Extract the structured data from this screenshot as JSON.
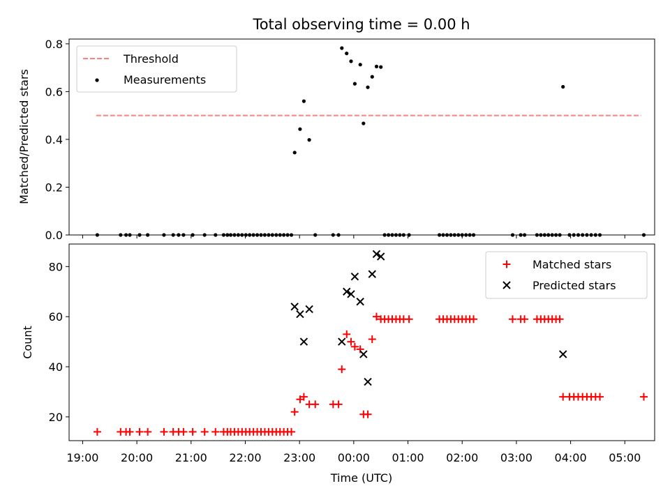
{
  "figure": {
    "title": "Total observing time = 0.00 h"
  },
  "chart_data": [
    {
      "type": "scatter",
      "panel": "top",
      "ylabel": "Matched/Predicted stars",
      "ylim": [
        0,
        0.82
      ],
      "yticks": [
        0.0,
        0.2,
        0.4,
        0.6,
        0.8
      ],
      "ytick_labels": [
        "0.0",
        "0.2",
        "0.4",
        "0.6",
        "0.8"
      ],
      "xlim": [
        -0.25,
        10.55
      ],
      "legend_position": "top-left",
      "threshold": {
        "name": "Threshold",
        "color": "#ff7f7f",
        "value": 0.5,
        "x_start": 0.25,
        "x_end": 10.3
      },
      "series": [
        {
          "name": "Measurements",
          "color": "#000000",
          "points": [
            [
              0.27,
              0
            ],
            [
              0.7,
              0
            ],
            [
              0.8,
              0
            ],
            [
              0.87,
              0
            ],
            [
              1.05,
              0
            ],
            [
              1.2,
              0
            ],
            [
              1.5,
              0
            ],
            [
              1.67,
              0
            ],
            [
              1.77,
              0
            ],
            [
              1.86,
              0
            ],
            [
              2.03,
              0
            ],
            [
              2.25,
              0
            ],
            [
              2.45,
              0
            ],
            [
              2.6,
              0
            ],
            [
              2.67,
              0
            ],
            [
              2.73,
              0
            ],
            [
              2.8,
              0
            ],
            [
              2.87,
              0
            ],
            [
              2.94,
              0
            ],
            [
              3.01,
              0
            ],
            [
              3.08,
              0
            ],
            [
              3.15,
              0
            ],
            [
              3.22,
              0
            ],
            [
              3.29,
              0
            ],
            [
              3.36,
              0
            ],
            [
              3.43,
              0
            ],
            [
              3.5,
              0
            ],
            [
              3.57,
              0
            ],
            [
              3.64,
              0
            ],
            [
              3.71,
              0
            ],
            [
              3.78,
              0
            ],
            [
              3.85,
              0
            ],
            [
              3.91,
              0.345
            ],
            [
              4.01,
              0.443
            ],
            [
              4.08,
              0.56
            ],
            [
              4.18,
              0.398
            ],
            [
              4.29,
              0
            ],
            [
              4.62,
              0
            ],
            [
              4.72,
              0
            ],
            [
              4.78,
              0.782
            ],
            [
              4.87,
              0.76
            ],
            [
              4.95,
              0.727
            ],
            [
              5.02,
              0.633
            ],
            [
              5.12,
              0.713
            ],
            [
              5.18,
              0.467
            ],
            [
              5.26,
              0.618
            ],
            [
              5.34,
              0.662
            ],
            [
              5.42,
              0.705
            ],
            [
              5.5,
              0.703
            ],
            [
              5.57,
              0
            ],
            [
              5.64,
              0
            ],
            [
              5.71,
              0
            ],
            [
              5.78,
              0
            ],
            [
              5.85,
              0
            ],
            [
              5.92,
              0
            ],
            [
              6.02,
              0
            ],
            [
              6.58,
              0
            ],
            [
              6.65,
              0
            ],
            [
              6.72,
              0
            ],
            [
              6.79,
              0
            ],
            [
              6.86,
              0
            ],
            [
              6.93,
              0
            ],
            [
              7.0,
              0
            ],
            [
              7.07,
              0
            ],
            [
              7.14,
              0
            ],
            [
              7.21,
              0
            ],
            [
              7.93,
              0
            ],
            [
              8.08,
              0
            ],
            [
              8.15,
              0
            ],
            [
              8.38,
              0
            ],
            [
              8.45,
              0
            ],
            [
              8.52,
              0
            ],
            [
              8.59,
              0
            ],
            [
              8.66,
              0
            ],
            [
              8.73,
              0
            ],
            [
              8.8,
              0
            ],
            [
              8.86,
              0.62
            ],
            [
              8.98,
              0
            ],
            [
              9.06,
              0
            ],
            [
              9.14,
              0
            ],
            [
              9.22,
              0
            ],
            [
              9.3,
              0
            ],
            [
              9.38,
              0
            ],
            [
              9.46,
              0
            ],
            [
              9.54,
              0
            ],
            [
              10.35,
              0
            ]
          ]
        }
      ]
    },
    {
      "type": "scatter",
      "panel": "bottom",
      "xlabel": "Time (UTC)",
      "ylabel": "Count",
      "ylim": [
        10.5,
        89
      ],
      "yticks": [
        20,
        40,
        60,
        80
      ],
      "ytick_labels": [
        "20",
        "40",
        "60",
        "80"
      ],
      "xlim": [
        -0.25,
        10.55
      ],
      "xticks": [
        0,
        1,
        2,
        3,
        4,
        5,
        6,
        7,
        8,
        9,
        10
      ],
      "xtick_labels": [
        "19:00",
        "20:00",
        "21:00",
        "22:00",
        "23:00",
        "00:00",
        "01:00",
        "02:00",
        "03:00",
        "04:00",
        "05:00"
      ],
      "legend_position": "top-right",
      "series": [
        {
          "name": "Matched stars",
          "color": "#ff0000",
          "marker": "plus",
          "points": [
            [
              0.27,
              14
            ],
            [
              0.7,
              14
            ],
            [
              0.8,
              14
            ],
            [
              0.87,
              14
            ],
            [
              1.05,
              14
            ],
            [
              1.2,
              14
            ],
            [
              1.5,
              14
            ],
            [
              1.67,
              14
            ],
            [
              1.77,
              14
            ],
            [
              1.86,
              14
            ],
            [
              2.03,
              14
            ],
            [
              2.25,
              14
            ],
            [
              2.45,
              14
            ],
            [
              2.6,
              14
            ],
            [
              2.67,
              14
            ],
            [
              2.73,
              14
            ],
            [
              2.8,
              14
            ],
            [
              2.87,
              14
            ],
            [
              2.94,
              14
            ],
            [
              3.01,
              14
            ],
            [
              3.08,
              14
            ],
            [
              3.15,
              14
            ],
            [
              3.22,
              14
            ],
            [
              3.29,
              14
            ],
            [
              3.36,
              14
            ],
            [
              3.43,
              14
            ],
            [
              3.5,
              14
            ],
            [
              3.57,
              14
            ],
            [
              3.64,
              14
            ],
            [
              3.71,
              14
            ],
            [
              3.78,
              14
            ],
            [
              3.85,
              14
            ],
            [
              3.91,
              22
            ],
            [
              4.01,
              27
            ],
            [
              4.08,
              28
            ],
            [
              4.18,
              25
            ],
            [
              4.29,
              25
            ],
            [
              4.62,
              25
            ],
            [
              4.72,
              25
            ],
            [
              4.78,
              39
            ],
            [
              4.87,
              53
            ],
            [
              4.95,
              50
            ],
            [
              5.02,
              48
            ],
            [
              5.12,
              47
            ],
            [
              5.18,
              21
            ],
            [
              5.26,
              21
            ],
            [
              5.34,
              51
            ],
            [
              5.42,
              60
            ],
            [
              5.5,
              59
            ],
            [
              5.57,
              59
            ],
            [
              5.64,
              59
            ],
            [
              5.71,
              59
            ],
            [
              5.78,
              59
            ],
            [
              5.85,
              59
            ],
            [
              5.92,
              59
            ],
            [
              6.02,
              59
            ],
            [
              6.58,
              59
            ],
            [
              6.65,
              59
            ],
            [
              6.72,
              59
            ],
            [
              6.79,
              59
            ],
            [
              6.86,
              59
            ],
            [
              6.93,
              59
            ],
            [
              7.0,
              59
            ],
            [
              7.07,
              59
            ],
            [
              7.14,
              59
            ],
            [
              7.21,
              59
            ],
            [
              7.93,
              59
            ],
            [
              8.08,
              59
            ],
            [
              8.15,
              59
            ],
            [
              8.38,
              59
            ],
            [
              8.45,
              59
            ],
            [
              8.52,
              59
            ],
            [
              8.59,
              59
            ],
            [
              8.66,
              59
            ],
            [
              8.73,
              59
            ],
            [
              8.8,
              59
            ],
            [
              8.86,
              28
            ],
            [
              8.98,
              28
            ],
            [
              9.06,
              28
            ],
            [
              9.14,
              28
            ],
            [
              9.22,
              28
            ],
            [
              9.3,
              28
            ],
            [
              9.38,
              28
            ],
            [
              9.46,
              28
            ],
            [
              9.54,
              28
            ],
            [
              10.35,
              28
            ]
          ]
        },
        {
          "name": "Predicted stars",
          "color": "#000000",
          "marker": "x",
          "points": [
            [
              3.91,
              64
            ],
            [
              4.01,
              61
            ],
            [
              4.08,
              50
            ],
            [
              4.18,
              63
            ],
            [
              4.78,
              50
            ],
            [
              4.87,
              70
            ],
            [
              4.95,
              69
            ],
            [
              5.02,
              76
            ],
            [
              5.12,
              66
            ],
            [
              5.18,
              45
            ],
            [
              5.26,
              34
            ],
            [
              5.34,
              77
            ],
            [
              5.42,
              85
            ],
            [
              5.5,
              84
            ],
            [
              8.86,
              45
            ]
          ]
        }
      ]
    }
  ]
}
